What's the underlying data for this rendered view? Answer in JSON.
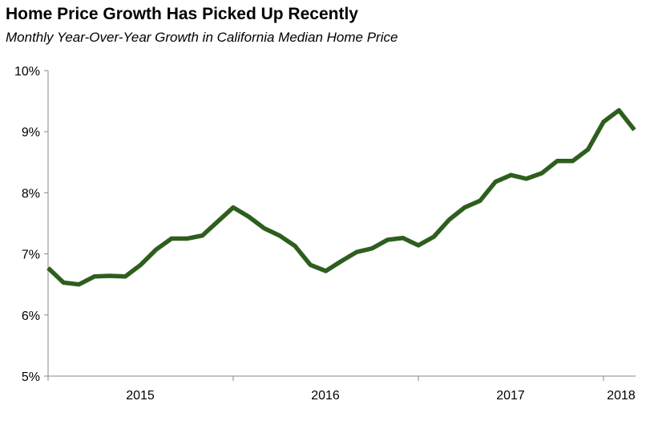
{
  "chart_data": {
    "type": "line",
    "title": "Home Price Growth Has Picked Up Recently",
    "subtitle": "Monthly Year-Over-Year Growth in California Median Home Price",
    "xlabel": "",
    "ylabel": "",
    "ylim": [
      5,
      10
    ],
    "y_ticks": [
      "5%",
      "6%",
      "7%",
      "8%",
      "9%",
      "10%"
    ],
    "x_tick_labels": [
      "2015",
      "2016",
      "2017",
      "2018"
    ],
    "grid": false,
    "line_color": "#2e5e1e",
    "series": [
      {
        "values": [
          6.77,
          6.53,
          6.5,
          6.63,
          6.64,
          6.63,
          6.82,
          7.07,
          7.25,
          7.25,
          7.3,
          7.53,
          7.76,
          7.61,
          7.42,
          7.3,
          7.13,
          6.82,
          6.72,
          6.88,
          7.03,
          7.09,
          7.23,
          7.26,
          7.14,
          7.28,
          7.56,
          7.76,
          7.87,
          8.18,
          8.29,
          8.23,
          8.32,
          8.52,
          8.52,
          8.71,
          9.16,
          9.35,
          9.03
        ]
      }
    ]
  }
}
